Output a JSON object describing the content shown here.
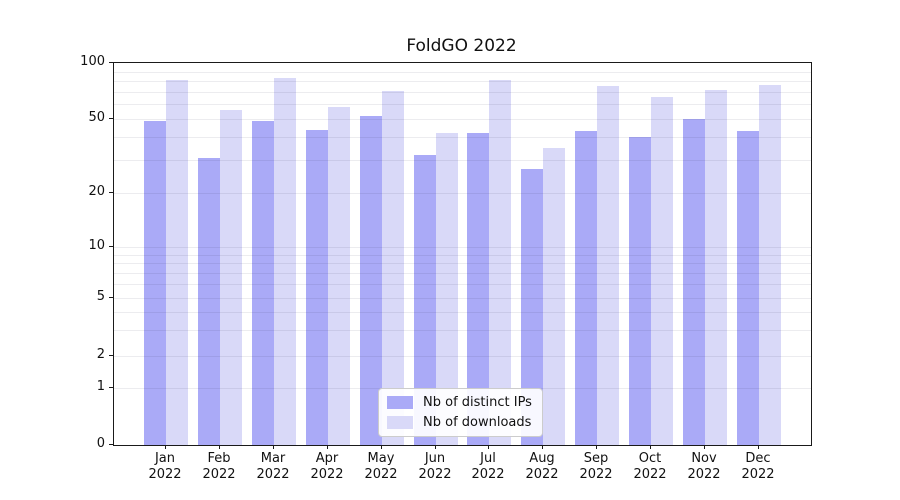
{
  "title": "FoldGO 2022",
  "chart_data": {
    "type": "bar",
    "title": "FoldGO 2022",
    "categories": [
      "Jan 2022",
      "Feb 2022",
      "Mar 2022",
      "Apr 2022",
      "May 2022",
      "Jun 2022",
      "Jul 2022",
      "Aug 2022",
      "Sep 2022",
      "Oct 2022",
      "Nov 2022",
      "Dec 2022"
    ],
    "x_tick_months": [
      "Jan",
      "Feb",
      "Mar",
      "Apr",
      "May",
      "Jun",
      "Jul",
      "Aug",
      "Sep",
      "Oct",
      "Nov",
      "Dec"
    ],
    "x_tick_year": "2022",
    "series": [
      {
        "name": "Nb of distinct IPs",
        "color": "#aaaaf7",
        "values": [
          49,
          31,
          49,
          44,
          52,
          32,
          42,
          27,
          43,
          40,
          50,
          43
        ]
      },
      {
        "name": "Nb of downloads",
        "color": "#d9d9f8",
        "values": [
          81,
          56,
          83,
          58,
          71,
          42,
          81,
          35,
          75,
          66,
          72,
          76
        ]
      }
    ],
    "y_axis": {
      "scale": "log-like",
      "tick_labels": [
        "100",
        "50",
        "20",
        "10",
        "5",
        "2",
        "1",
        "0"
      ],
      "tick_values": [
        100,
        50,
        20,
        10,
        5,
        2,
        1,
        0
      ]
    },
    "grid": true,
    "legend_position": "lower center",
    "colors": {
      "bar_dark": "#aaaaf7",
      "bar_light": "#d9d9f8",
      "axis": "#1a1a1a",
      "grid": "#ebebeb"
    }
  },
  "legend": {
    "items": [
      {
        "label": "Nb of distinct IPs"
      },
      {
        "label": "Nb of downloads"
      }
    ]
  }
}
